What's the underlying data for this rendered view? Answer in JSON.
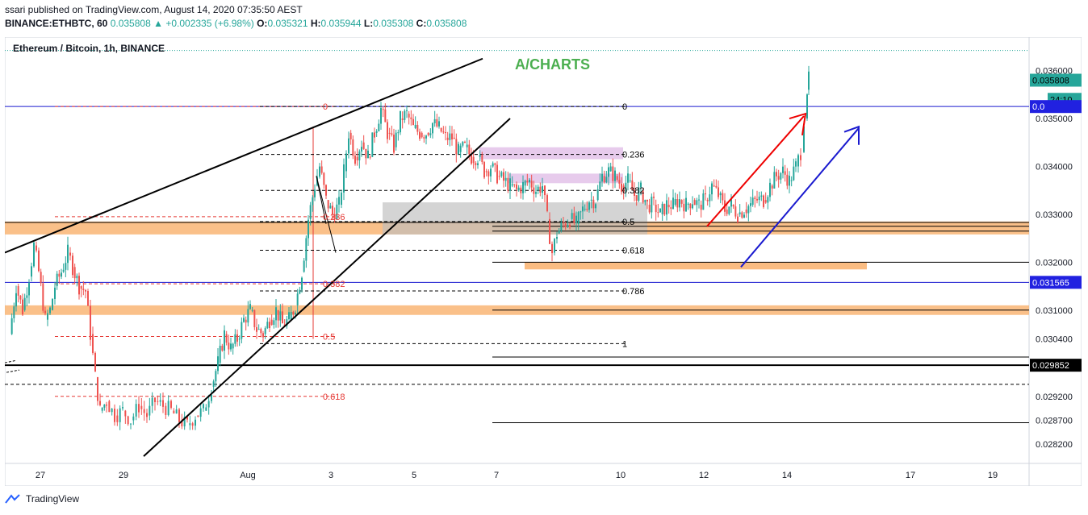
{
  "header": {
    "published": "ssari published on TradingView.com, August 14, 2020 07:35:50 AEST",
    "symbol": "BINANCE:ETHBTC, 60",
    "last": "0.035808",
    "change": "+0.002335 (+6.98%)",
    "o_label": "O:",
    "o": "0.035321",
    "h_label": "H:",
    "h": "0.035944",
    "l_label": "L:",
    "l": "0.035308",
    "c_label": "C:",
    "c": "0.035808"
  },
  "footer": {
    "brand": "TradingView"
  },
  "colors": {
    "up": "#26a69a",
    "down": "#ef5350",
    "orange_zone": "#f9b574",
    "purple_zone": "#e1bee7",
    "gray_zone": "#bdbdbd",
    "blue_line": "#1a1acf",
    "red_fib": "#e53935",
    "price_tag": "#26a69a",
    "level_tag_blue": "#2121e0"
  },
  "chart_data": {
    "type": "candlestick",
    "title": "Ethereum / Bitcoin, 1h, BINANCE",
    "annotation": "A/CHARTS",
    "x_axis_labels": [
      "27",
      "29",
      "Aug",
      "3",
      "5",
      "7",
      "10",
      "12",
      "14",
      "17",
      "19"
    ],
    "y_axis_labels": [
      "0.036000",
      "0.035000",
      "0.034000",
      "0.033000",
      "0.032000",
      "0.031000",
      "0.030400",
      "0.029200",
      "0.028700",
      "0.028200"
    ],
    "ylim": [
      0.0278,
      0.0367
    ],
    "price_tags": [
      {
        "value": "0.035808",
        "kind": "last"
      },
      {
        "value": "24:10",
        "kind": "countdown"
      },
      {
        "value": "0.0",
        "kind": "blue-level"
      },
      {
        "value": "0.031565",
        "kind": "blue-level"
      },
      {
        "value": "0.029852",
        "kind": "black-level"
      }
    ],
    "fib_red": {
      "labels": [
        "0",
        "0.236",
        "0.382",
        "0.5",
        "0.618"
      ],
      "prices": [
        0.03525,
        0.03295,
        0.03155,
        0.03045,
        0.0292
      ]
    },
    "fib_black": {
      "labels": [
        "0",
        "0.236",
        "0.382",
        "0.5",
        "0.618",
        "0.786",
        "1"
      ],
      "prices": [
        0.03525,
        0.03425,
        0.0335,
        0.03285,
        0.03225,
        0.0314,
        0.0303
      ]
    },
    "horizontal_levels": [
      0.03525,
      0.03158,
      0.02985,
      0.03275,
      0.03265,
      0.031,
      0.0301,
      0.0293,
      0.02865,
      0.0364
    ],
    "series_close_path": [
      [
        0,
        0.0305
      ],
      [
        8,
        0.0315
      ],
      [
        16,
        0.031
      ],
      [
        24,
        0.0317
      ],
      [
        30,
        0.03235
      ],
      [
        36,
        0.0318
      ],
      [
        44,
        0.0308
      ],
      [
        50,
        0.031
      ],
      [
        56,
        0.0315
      ],
      [
        64,
        0.0318
      ],
      [
        72,
        0.0322
      ],
      [
        78,
        0.0319
      ],
      [
        86,
        0.0315
      ],
      [
        94,
        0.0314
      ],
      [
        100,
        0.0305
      ],
      [
        106,
        0.0296
      ],
      [
        112,
        0.0289
      ],
      [
        120,
        0.0291
      ],
      [
        130,
        0.0288
      ],
      [
        140,
        0.0289
      ],
      [
        150,
        0.0287
      ],
      [
        160,
        0.029
      ],
      [
        170,
        0.0288
      ],
      [
        180,
        0.0291
      ],
      [
        190,
        0.029
      ],
      [
        200,
        0.0289
      ],
      [
        210,
        0.0287
      ],
      [
        220,
        0.0286
      ],
      [
        230,
        0.0288
      ],
      [
        240,
        0.0289
      ],
      [
        250,
        0.0294
      ],
      [
        258,
        0.0299
      ],
      [
        266,
        0.0305
      ],
      [
        274,
        0.0302
      ],
      [
        282,
        0.0304
      ],
      [
        290,
        0.0308
      ],
      [
        298,
        0.031
      ],
      [
        306,
        0.0306
      ],
      [
        314,
        0.0305
      ],
      [
        322,
        0.0308
      ],
      [
        330,
        0.031
      ],
      [
        338,
        0.0307
      ],
      [
        346,
        0.0308
      ],
      [
        354,
        0.0311
      ],
      [
        362,
        0.0318
      ],
      [
        370,
        0.0329
      ],
      [
        378,
        0.0336
      ],
      [
        384,
        0.034
      ],
      [
        392,
        0.0333
      ],
      [
        400,
        0.033
      ],
      [
        408,
        0.0332
      ],
      [
        414,
        0.0339
      ],
      [
        420,
        0.0347
      ],
      [
        428,
        0.0342
      ],
      [
        436,
        0.0345
      ],
      [
        444,
        0.0342
      ],
      [
        452,
        0.0347
      ],
      [
        460,
        0.0352
      ],
      [
        468,
        0.0347
      ],
      [
        476,
        0.0344
      ],
      [
        484,
        0.035
      ],
      [
        492,
        0.0351
      ],
      [
        500,
        0.0348
      ],
      [
        508,
        0.0347
      ],
      [
        516,
        0.0347
      ],
      [
        524,
        0.0349
      ],
      [
        532,
        0.0348
      ],
      [
        540,
        0.0346
      ],
      [
        548,
        0.0346
      ],
      [
        556,
        0.0343
      ],
      [
        564,
        0.0344
      ],
      [
        572,
        0.0342
      ],
      [
        580,
        0.0342
      ],
      [
        588,
        0.0339
      ],
      [
        596,
        0.034
      ],
      [
        604,
        0.0338
      ],
      [
        612,
        0.0337
      ],
      [
        620,
        0.0336
      ],
      [
        628,
        0.0335
      ],
      [
        636,
        0.0336
      ],
      [
        644,
        0.0337
      ],
      [
        652,
        0.0335
      ],
      [
        660,
        0.0336
      ],
      [
        666,
        0.0329
      ],
      [
        672,
        0.0322
      ],
      [
        678,
        0.0326
      ],
      [
        686,
        0.0328
      ],
      [
        694,
        0.0329
      ],
      [
        702,
        0.0328
      ],
      [
        710,
        0.0331
      ],
      [
        718,
        0.0333
      ],
      [
        726,
        0.0333
      ],
      [
        734,
        0.0338
      ],
      [
        742,
        0.0339
      ],
      [
        750,
        0.0338
      ],
      [
        758,
        0.0336
      ],
      [
        766,
        0.0337
      ],
      [
        774,
        0.0334
      ],
      [
        782,
        0.0335
      ],
      [
        790,
        0.0332
      ],
      [
        798,
        0.0332
      ],
      [
        806,
        0.033
      ],
      [
        814,
        0.0332
      ],
      [
        822,
        0.0332
      ],
      [
        830,
        0.0333
      ],
      [
        838,
        0.0332
      ],
      [
        846,
        0.0333
      ],
      [
        854,
        0.0332
      ],
      [
        862,
        0.0333
      ],
      [
        870,
        0.0336
      ],
      [
        878,
        0.0334
      ],
      [
        886,
        0.0331
      ],
      [
        894,
        0.0332
      ],
      [
        902,
        0.033
      ],
      [
        910,
        0.0331
      ],
      [
        918,
        0.0332
      ],
      [
        926,
        0.0333
      ],
      [
        934,
        0.0333
      ],
      [
        942,
        0.0336
      ],
      [
        950,
        0.0338
      ],
      [
        958,
        0.0339
      ],
      [
        966,
        0.0337
      ],
      [
        974,
        0.034
      ],
      [
        980,
        0.0343
      ],
      [
        984,
        0.035
      ],
      [
        988,
        0.0356
      ],
      [
        990,
        0.03581
      ]
    ]
  }
}
